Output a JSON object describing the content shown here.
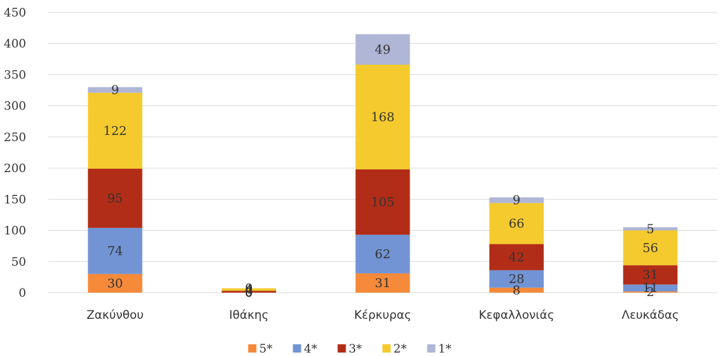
{
  "chart_data": {
    "type": "bar",
    "stacked": true,
    "categories": [
      "Ζακύνθου",
      "Ιθάκης",
      "Κέρκυρας",
      "Κεφαλλονιάς",
      "Λευκάδας"
    ],
    "series": [
      {
        "name": "5*",
        "color": "#F58A3B",
        "values": [
          30,
          0,
          31,
          8,
          2
        ]
      },
      {
        "name": "4*",
        "color": "#7294D4",
        "values": [
          74,
          0,
          62,
          28,
          11
        ]
      },
      {
        "name": "3*",
        "color": "#B22D17",
        "values": [
          95,
          3,
          105,
          42,
          31
        ]
      },
      {
        "name": "2*",
        "color": "#F4CA2E",
        "values": [
          122,
          4,
          168,
          66,
          56
        ]
      },
      {
        "name": "1*",
        "color": "#AFB6D6",
        "values": [
          9,
          0,
          49,
          9,
          5
        ]
      }
    ],
    "yticks": [
      0,
      50,
      100,
      150,
      200,
      250,
      300,
      350,
      400,
      450
    ],
    "ylim": [
      0,
      450
    ],
    "grid": true,
    "legend_position": "bottom"
  }
}
